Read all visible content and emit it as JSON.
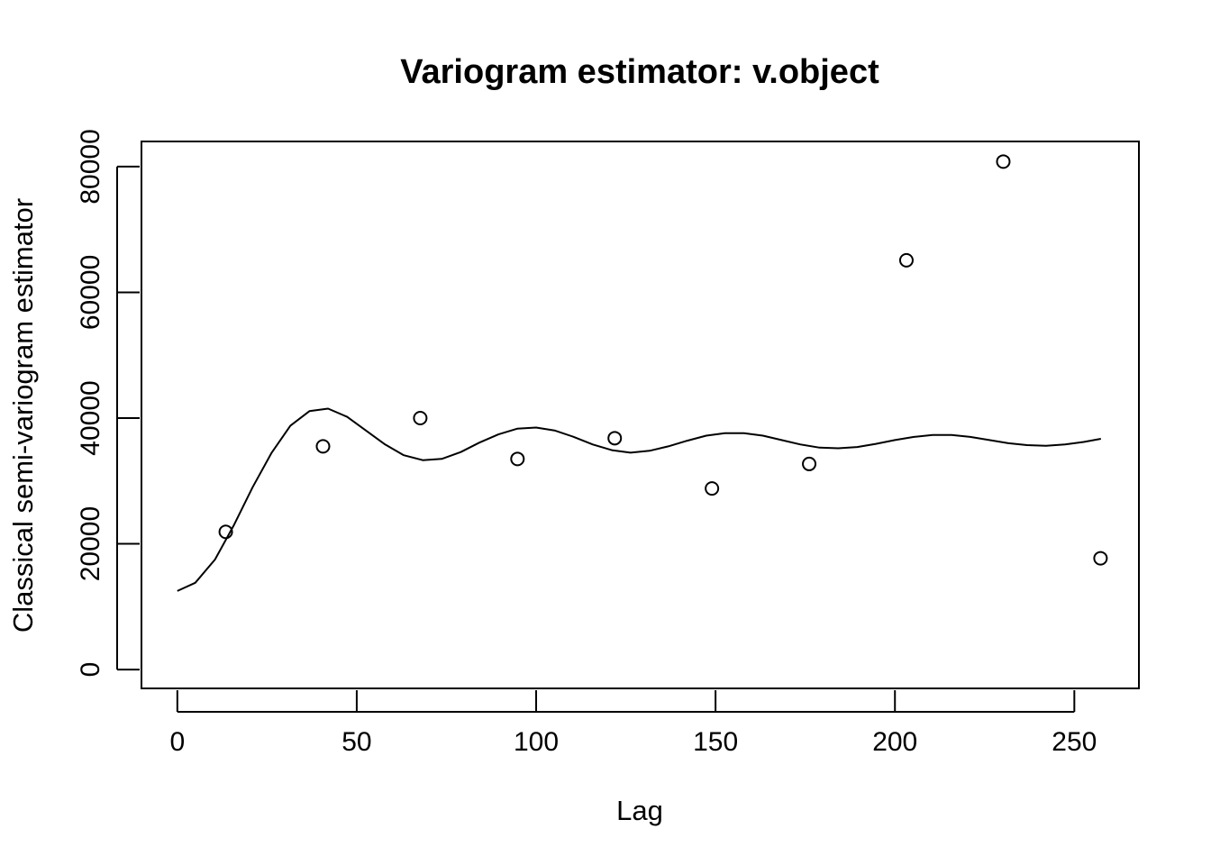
{
  "chart_data": {
    "type": "scatter",
    "title": "Variogram estimator: v.object",
    "xlabel": "Lag",
    "ylabel": "Classical semi-variogram estimator",
    "xlim": [
      -10,
      268
    ],
    "ylim": [
      -3000,
      84000
    ],
    "x_ticks": [
      0,
      50,
      100,
      150,
      200,
      250
    ],
    "y_ticks": [
      0,
      20000,
      40000,
      60000,
      80000
    ],
    "x_tick_labels": [
      "0",
      "50",
      "100",
      "150",
      "200",
      "250"
    ],
    "y_tick_labels": [
      "0",
      "20000",
      "40000",
      "60000",
      "80000"
    ],
    "grid": false,
    "series": [
      {
        "kind": "points",
        "marker": "open-circle",
        "x": [
          13.5,
          40.6,
          67.7,
          94.8,
          121.9,
          149.0,
          176.1,
          203.2,
          230.2,
          257.3
        ],
        "y": [
          21900,
          35500,
          40000,
          33500,
          36800,
          28800,
          32700,
          65100,
          80800,
          17700
        ]
      },
      {
        "kind": "line",
        "x": [
          0,
          5,
          10.5,
          15.8,
          21,
          26.3,
          31.5,
          36.8,
          42,
          47.3,
          52.6,
          57.9,
          63.1,
          68.4,
          73.7,
          79,
          84.2,
          89.5,
          94.7,
          100,
          105.3,
          110.5,
          115.8,
          121.1,
          126.3,
          131.6,
          136.8,
          142.1,
          147.4,
          152.6,
          157.9,
          163.2,
          168.4,
          173.7,
          179,
          184.2,
          189.5,
          194.7,
          200,
          205.3,
          210.5,
          215.8,
          221,
          226.3,
          231.6,
          236.8,
          242.1,
          247.4,
          252.6,
          257.4
        ],
        "y": [
          12500,
          13800,
          17500,
          23000,
          29000,
          34500,
          38800,
          41100,
          41500,
          40200,
          38000,
          35800,
          34100,
          33300,
          33500,
          34600,
          36100,
          37400,
          38300,
          38500,
          38000,
          37000,
          35800,
          34900,
          34500,
          34800,
          35500,
          36400,
          37200,
          37600,
          37600,
          37200,
          36500,
          35800,
          35300,
          35200,
          35400,
          35900,
          36500,
          37000,
          37300,
          37300,
          37000,
          36500,
          36000,
          35700,
          35600,
          35800,
          36200,
          36700
        ]
      }
    ]
  }
}
